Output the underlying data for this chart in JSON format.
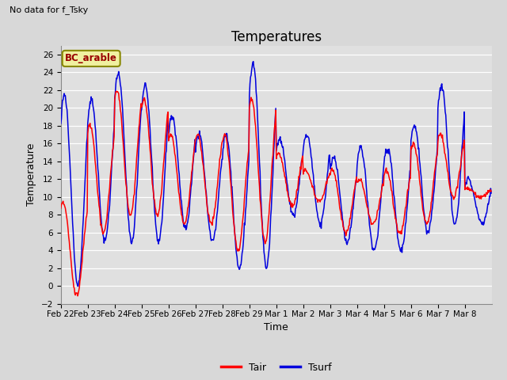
{
  "title": "Temperatures",
  "xlabel": "Time",
  "ylabel": "Temperature",
  "top_left_text": "No data for f_Tsky",
  "legend_label_text": "BC_arable",
  "line1_label": "Tair",
  "line2_label": "Tsurf",
  "line1_color": "#ff0000",
  "line2_color": "#0000dd",
  "ylim": [
    -2,
    27
  ],
  "yticks": [
    -2,
    0,
    2,
    4,
    6,
    8,
    10,
    12,
    14,
    16,
    18,
    20,
    22,
    24,
    26
  ],
  "bg_color": "#d8d8d8",
  "plot_bg_color": "#e0e0e0",
  "grid_color": "#ffffff",
  "xtick_labels": [
    "Feb 22",
    "Feb 23",
    "Feb 24",
    "Feb 25",
    "Feb 26",
    "Feb 27",
    "Feb 28",
    "Feb 29",
    "Mar 1",
    "Mar 2",
    "Mar 3",
    "Mar 4",
    "Mar 5",
    "Mar 6",
    "Mar 7",
    "Mar 8"
  ],
  "title_fontsize": 12,
  "axis_label_fontsize": 9,
  "tick_fontsize": 7.5,
  "legend_fontsize": 9,
  "note_fontsize": 8
}
